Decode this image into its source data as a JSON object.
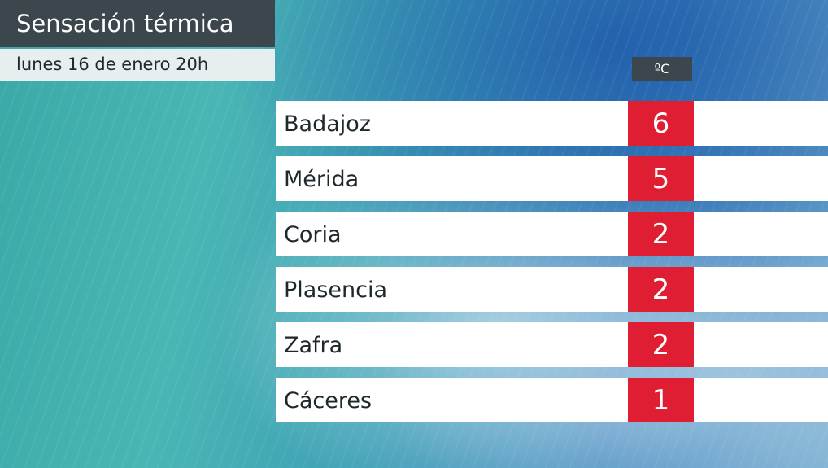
{
  "header": {
    "title": "Sensación térmica",
    "subtitle": "lunes 16 de enero 20h"
  },
  "table": {
    "unit": "ºC",
    "rows": [
      [
        "Badajoz",
        6
      ],
      [
        "Mérida",
        5
      ],
      [
        "Coria",
        2
      ],
      [
        "Plasencia",
        2
      ],
      [
        "Zafra",
        2
      ],
      [
        "Cáceres",
        1
      ]
    ]
  }
}
